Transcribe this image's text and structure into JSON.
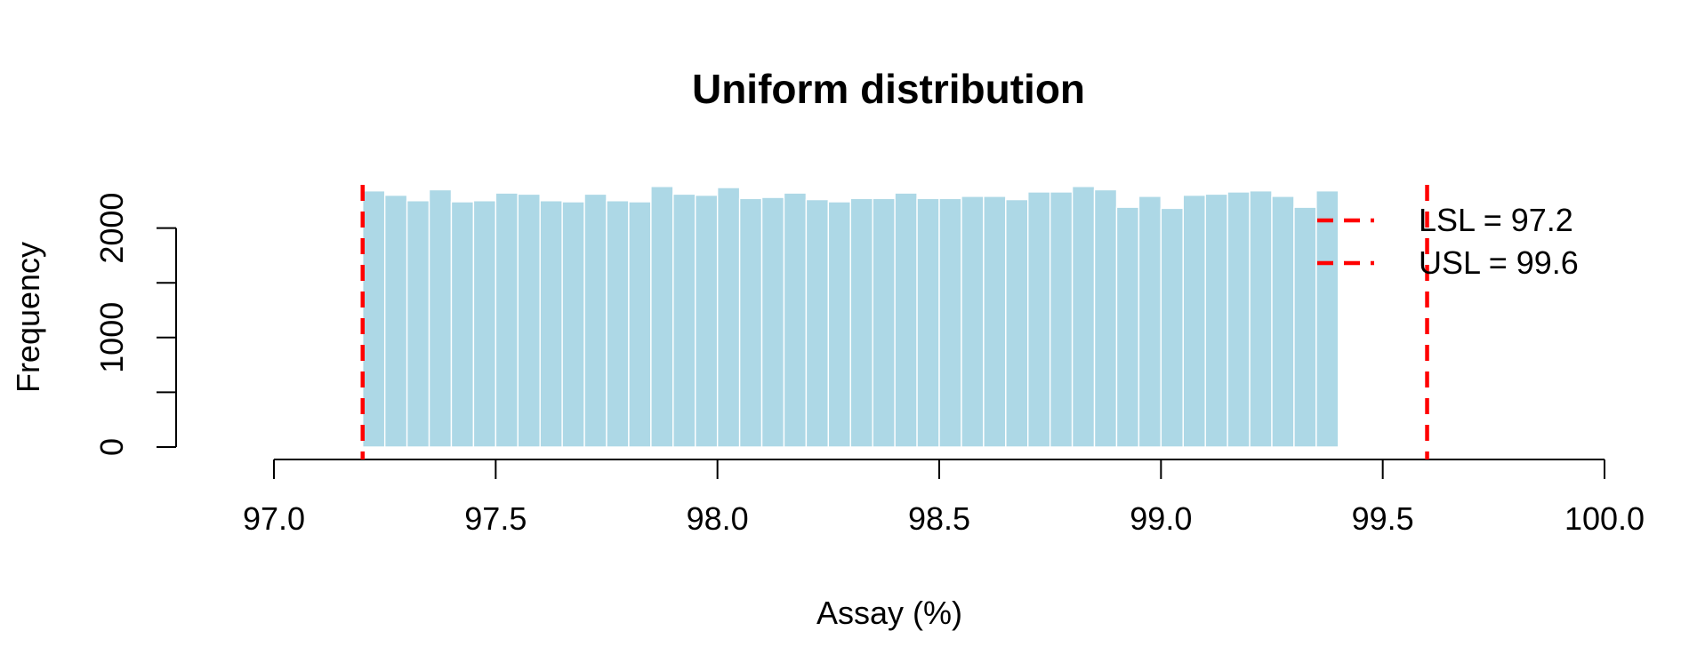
{
  "chart_data": {
    "type": "histogram",
    "title": "Uniform distribution",
    "xlabel": "Assay (%)",
    "ylabel": "Frequency",
    "xlim": [
      97.0,
      100.0
    ],
    "ylim": [
      0,
      2400
    ],
    "x_ticks": [
      "97.0",
      "97.5",
      "98.0",
      "98.5",
      "99.0",
      "99.5",
      "100.0"
    ],
    "y_ticks": [
      "0",
      "1000",
      "2000"
    ],
    "bin_width": 0.05,
    "bin_start": 97.2,
    "values": [
      2340,
      2300,
      2250,
      2350,
      2240,
      2250,
      2320,
      2310,
      2250,
      2240,
      2310,
      2250,
      2240,
      2380,
      2310,
      2300,
      2370,
      2270,
      2280,
      2320,
      2260,
      2240,
      2270,
      2270,
      2320,
      2270,
      2270,
      2290,
      2290,
      2260,
      2330,
      2330,
      2380,
      2350,
      2190,
      2290,
      2180,
      2300,
      2310,
      2330,
      2340,
      2290,
      2190,
      2340
    ],
    "bar_color": "#ADD8E6",
    "lines": [
      {
        "label": "LSL = 97.2",
        "x": 97.2,
        "color": "#FF0000",
        "style": "dashed"
      },
      {
        "label": "USL = 99.6",
        "x": 99.6,
        "color": "#FF0000",
        "style": "dashed"
      }
    ],
    "legend_position": "top-right",
    "grid": false
  }
}
